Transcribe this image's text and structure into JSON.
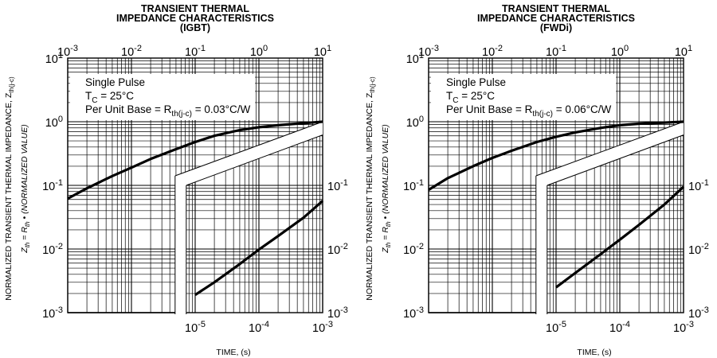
{
  "chart_data": [
    {
      "type": "line",
      "title": [
        "TRANSIENT THERMAL",
        "IMPEDANCE CHARACTERISTICS",
        "(IGBT)"
      ],
      "xlabel": "TIME, (s)",
      "ylabel": "NORMALIZED TRANSIENT THERMAL IMPEDANCE, Z",
      "ylabel_sub": "th(j-c)",
      "ylabel2": "• (NORMALIZED VALUE)",
      "x_scale": "log",
      "y_scale": "log",
      "grid": true,
      "upper_x_range": [
        0.001,
        10
      ],
      "upper_y_range": [
        0.001,
        10
      ],
      "lower_x_range": [
        1e-05,
        0.001
      ],
      "lower_y_range": [
        0.001,
        0.1
      ],
      "legend": [
        "Single Pulse",
        "T_C = 25°C",
        "Per Unit Base = R_th(j-c) = 0.03°C/W"
      ],
      "upper_series": {
        "x": [
          0.001,
          0.002,
          0.005,
          0.01,
          0.02,
          0.05,
          0.1,
          0.2,
          0.5,
          1,
          2,
          5,
          10
        ],
        "y": [
          0.062,
          0.09,
          0.14,
          0.19,
          0.26,
          0.37,
          0.48,
          0.6,
          0.74,
          0.82,
          0.88,
          0.95,
          1.0
        ]
      },
      "lower_series": {
        "x": [
          1e-05,
          2e-05,
          5e-05,
          0.0001,
          0.0002,
          0.0005,
          0.001
        ],
        "y": [
          0.0019,
          0.003,
          0.0058,
          0.0098,
          0.016,
          0.031,
          0.057
        ]
      }
    },
    {
      "type": "line",
      "title": [
        "TRANSIENT THERMAL",
        "IMPEDANCE CHARACTERISTICS",
        "(FWDi)"
      ],
      "xlabel": "TIME, (s)",
      "ylabel": "NORMALIZED TRANSIENT THERMAL IMPEDANCE, Z",
      "ylabel_sub": "th(j-c)",
      "ylabel2": "• (NORMALIZED VALUE)",
      "x_scale": "log",
      "y_scale": "log",
      "grid": true,
      "upper_x_range": [
        0.001,
        10
      ],
      "upper_y_range": [
        0.001,
        10
      ],
      "lower_x_range": [
        1e-05,
        0.001
      ],
      "lower_y_range": [
        0.001,
        0.1
      ],
      "legend": [
        "Single Pulse",
        "T_C = 25°C",
        "Per Unit Base = R_th(j-c) = 0.06°C/W"
      ],
      "upper_series": {
        "x": [
          0.001,
          0.002,
          0.005,
          0.01,
          0.02,
          0.05,
          0.1,
          0.2,
          0.5,
          1,
          2,
          5,
          10
        ],
        "y": [
          0.085,
          0.13,
          0.2,
          0.27,
          0.35,
          0.48,
          0.58,
          0.68,
          0.8,
          0.88,
          0.93,
          0.97,
          1.0
        ]
      },
      "lower_series": {
        "x": [
          1e-05,
          2e-05,
          5e-05,
          0.0001,
          0.0002,
          0.0005,
          0.001
        ],
        "y": [
          0.0025,
          0.0042,
          0.0083,
          0.014,
          0.024,
          0.05,
          0.095
        ]
      }
    }
  ],
  "tick_labels": {
    "top_x": [
      {
        "base": "10",
        "exp": "-3"
      },
      {
        "base": "10",
        "exp": "-2"
      },
      {
        "base": "10",
        "exp": "-1"
      },
      {
        "base": "10",
        "exp": "0"
      },
      {
        "base": "10",
        "exp": "1"
      }
    ],
    "left_y": [
      {
        "base": "10",
        "exp": "1"
      },
      {
        "base": "10",
        "exp": "0"
      },
      {
        "base": "10",
        "exp": "-1"
      },
      {
        "base": "10",
        "exp": "-2"
      },
      {
        "base": "10",
        "exp": "-3"
      }
    ],
    "bottom_x": [
      {
        "base": "10",
        "exp": "-5"
      },
      {
        "base": "10",
        "exp": "-4"
      },
      {
        "base": "10",
        "exp": "-3"
      }
    ],
    "right_y": [
      {
        "base": "10",
        "exp": "-1"
      },
      {
        "base": "10",
        "exp": "-2"
      },
      {
        "base": "10",
        "exp": "-3"
      }
    ]
  }
}
